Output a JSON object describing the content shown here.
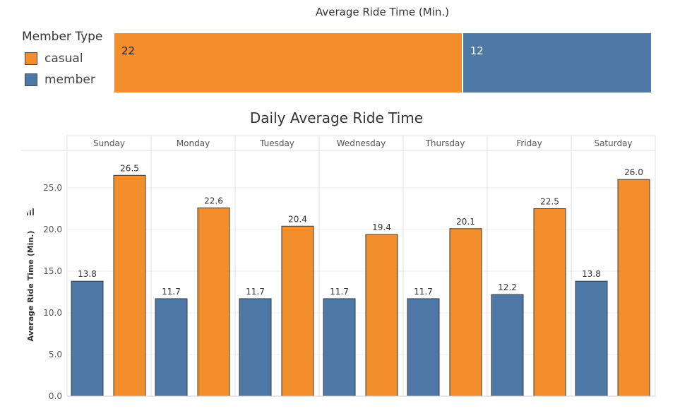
{
  "summary": {
    "title": "Average Ride Time (Min.)",
    "segments": [
      {
        "name": "casual",
        "value": 22,
        "label": "22",
        "color": "#F28E2B"
      },
      {
        "name": "member",
        "value": 12,
        "label": "12",
        "color": "#4E79A7"
      }
    ]
  },
  "legend": {
    "title": "Member Type",
    "items": [
      {
        "label": "casual",
        "color": "#F28E2B"
      },
      {
        "label": "member",
        "color": "#4E79A7"
      }
    ]
  },
  "chart_data": {
    "type": "bar",
    "title": "Daily Average Ride Time",
    "xlabel": "",
    "ylabel": "Average Ride Time (Min.)",
    "ylim": [
      0,
      28
    ],
    "yticks": [
      0,
      5,
      10,
      15,
      20,
      25
    ],
    "ytick_labels": [
      "0.0",
      "5.0",
      "10.0",
      "15.0",
      "20.0",
      "25.0"
    ],
    "grid": true,
    "categories": [
      "Sunday",
      "Monday",
      "Tuesday",
      "Wednesday",
      "Thursday",
      "Friday",
      "Saturday"
    ],
    "series": [
      {
        "name": "member",
        "color": "#4E79A7",
        "values": [
          13.8,
          11.7,
          11.7,
          11.7,
          11.7,
          12.2,
          13.8
        ],
        "labels": [
          "13.8",
          "11.7",
          "11.7",
          "11.7",
          "11.7",
          "12.2",
          "13.8"
        ]
      },
      {
        "name": "casual",
        "color": "#F28E2B",
        "values": [
          26.5,
          22.6,
          20.4,
          19.4,
          20.1,
          22.5,
          26.0
        ],
        "labels": [
          "26.5",
          "22.6",
          "20.4",
          "19.4",
          "20.1",
          "22.5",
          "26.0"
        ]
      }
    ]
  }
}
